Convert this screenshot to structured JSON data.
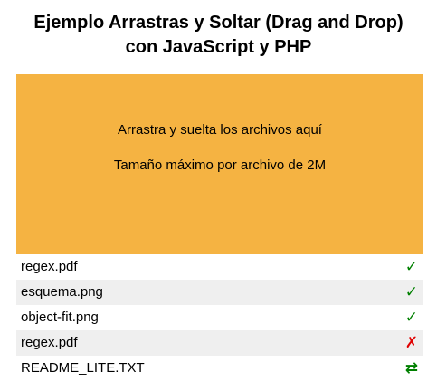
{
  "page": {
    "title_line1": "Ejemplo Arrastras y Soltar (Drag and Drop)",
    "title_line2": "con JavaScript y PHP"
  },
  "dropzone": {
    "background": "#f5b342",
    "instruction": "Arrastra y suelta los archivos aquí",
    "limit": "Tamaño máximo por archivo de 2M"
  },
  "status_colors": {
    "success": "#008000",
    "error": "#e00000",
    "transfer": "#008000"
  },
  "files": [
    {
      "name": "regex.pdf",
      "status": "success",
      "icon": "check-icon",
      "glyph": "✓"
    },
    {
      "name": "esquema.png",
      "status": "success",
      "icon": "check-icon",
      "glyph": "✓"
    },
    {
      "name": "object-fit.png",
      "status": "success",
      "icon": "check-icon",
      "glyph": "✓"
    },
    {
      "name": "regex.pdf",
      "status": "error",
      "icon": "cross-icon",
      "glyph": "✗"
    },
    {
      "name": "README_LITE.TXT",
      "status": "transfer",
      "icon": "transfer-icon",
      "glyph": "⇄"
    }
  ]
}
